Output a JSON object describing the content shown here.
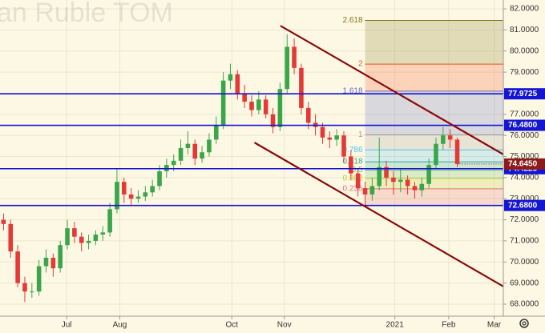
{
  "chart_data": {
    "type": "candlestick",
    "title": "an Ruble TOM",
    "categories": [
      null,
      null,
      null,
      null,
      null,
      null,
      null,
      null,
      null,
      null,
      null,
      null,
      null,
      null,
      null,
      null,
      null,
      null,
      null,
      null,
      null,
      null,
      null,
      null,
      null,
      null,
      null,
      null,
      null,
      null,
      null,
      null,
      null,
      null,
      null,
      null,
      null,
      null,
      null,
      null,
      null,
      null,
      null,
      null,
      null,
      null,
      null,
      null,
      null,
      null,
      null,
      null,
      null,
      null,
      null,
      null,
      null,
      null,
      null,
      null,
      null,
      null,
      null,
      null,
      null
    ],
    "open": [
      72.0,
      71.8,
      70.5,
      69.0,
      68.6,
      68.6,
      69.8,
      70.2,
      69.7,
      70.8,
      71.6,
      71.2,
      70.9,
      71.0,
      71.3,
      71.4,
      72.5,
      73.8,
      73.2,
      73.0,
      73.1,
      73.3,
      73.6,
      74.3,
      74.6,
      74.8,
      75.4,
      75.6,
      74.9,
      75.2,
      75.8,
      76.5,
      78.6,
      78.9,
      78.0,
      77.6,
      77.2,
      77.7,
      77.0,
      76.4,
      78.2,
      80.2,
      79.2,
      77.3,
      76.6,
      76.4,
      75.9,
      75.8,
      76.0,
      75.0,
      74.2,
      73.5,
      73.2,
      73.6,
      74.5,
      74.0,
      73.8,
      73.9,
      73.6,
      73.4,
      73.7,
      74.6,
      75.6,
      76.0,
      75.8
    ],
    "high": [
      72.3,
      72.0,
      70.8,
      69.3,
      69.0,
      70.1,
      70.6,
      70.4,
      71.0,
      72.0,
      71.9,
      71.4,
      71.3,
      71.5,
      71.7,
      72.8,
      74.4,
      74.0,
      73.5,
      73.4,
      73.6,
      73.9,
      74.6,
      74.9,
      75.1,
      75.8,
      76.2,
      75.8,
      75.5,
      76.1,
      76.9,
      79.0,
      79.4,
      79.1,
      78.4,
      77.9,
      78.1,
      77.9,
      77.3,
      78.5,
      80.8,
      80.6,
      79.4,
      77.6,
      77.0,
      76.6,
      76.2,
      76.3,
      76.2,
      75.3,
      74.4,
      73.8,
      74.0,
      75.9,
      74.8,
      74.3,
      74.4,
      74.1,
      73.8,
      74.0,
      74.9,
      75.9,
      76.4,
      76.3,
      75.9
    ],
    "low": [
      71.5,
      70.2,
      68.8,
      68.1,
      68.3,
      68.4,
      69.5,
      69.3,
      69.5,
      70.6,
      70.9,
      70.5,
      70.6,
      70.8,
      71.0,
      71.2,
      72.3,
      72.8,
      72.7,
      72.8,
      72.9,
      73.1,
      73.4,
      74.0,
      74.3,
      74.6,
      75.1,
      74.6,
      74.7,
      75.0,
      75.6,
      76.3,
      78.2,
      77.7,
      77.3,
      76.9,
      77.0,
      76.8,
      76.1,
      76.2,
      78.0,
      78.9,
      77.0,
      76.3,
      76.0,
      75.6,
      75.4,
      75.5,
      74.7,
      73.9,
      73.1,
      72.7,
      72.9,
      73.4,
      73.6,
      73.2,
      73.3,
      73.2,
      73.0,
      73.1,
      73.5,
      74.4,
      75.3,
      75.4,
      74.5
    ],
    "close": [
      71.8,
      70.5,
      69.0,
      68.6,
      68.6,
      69.8,
      70.2,
      69.7,
      70.8,
      71.6,
      71.2,
      70.9,
      71.0,
      71.3,
      71.4,
      72.5,
      73.8,
      73.2,
      73.0,
      73.1,
      73.3,
      73.6,
      74.3,
      74.6,
      74.8,
      75.4,
      75.6,
      74.9,
      75.2,
      75.8,
      76.5,
      78.6,
      78.9,
      78.0,
      77.6,
      77.2,
      77.7,
      77.0,
      76.4,
      78.2,
      80.2,
      79.2,
      77.3,
      76.6,
      76.4,
      75.9,
      75.8,
      76.0,
      75.0,
      74.2,
      73.5,
      73.2,
      73.6,
      74.5,
      74.0,
      73.8,
      73.9,
      73.6,
      73.4,
      73.7,
      74.6,
      75.6,
      76.0,
      75.8,
      74.645
    ],
    "up_color": "#3aa64a",
    "down_color": "#e53935",
    "last_label": "74.6450",
    "last_color": "#8e1b1b",
    "xlim": [
      -0.5,
      70.5
    ],
    "xticks": [
      {
        "value": 8.9,
        "label": "Jul"
      },
      {
        "value": 16.4,
        "label": "Aug"
      },
      {
        "value": 32.2,
        "label": "Oct"
      },
      {
        "value": 39.6,
        "label": "Nov"
      },
      {
        "value": 55.2,
        "label": "2021"
      },
      {
        "value": 62.8,
        "label": "Feb"
      },
      {
        "value": 69.2,
        "label": "Mar"
      }
    ],
    "ylim": [
      67.43,
      82.42
    ],
    "yticks": [
      {
        "value": 68,
        "label": "68.0000"
      },
      {
        "value": 69,
        "label": "69.0000"
      },
      {
        "value": 70,
        "label": "70.0000"
      },
      {
        "value": 71,
        "label": "71.0000"
      },
      {
        "value": 72,
        "label": "72.0000"
      },
      {
        "value": 73,
        "label": "73.0000"
      },
      {
        "value": 74,
        "label": "74.0000"
      },
      {
        "value": 75,
        "label": "75.0000"
      },
      {
        "value": 76,
        "label": "76.0000"
      },
      {
        "value": 77,
        "label": "77.0000"
      },
      {
        "value": 78,
        "label": "78.0000"
      },
      {
        "value": 79,
        "label": "79.0000"
      },
      {
        "value": 80,
        "label": "80.0000"
      },
      {
        "value": 81,
        "label": "81.0000"
      },
      {
        "value": 82,
        "label": "82.0000"
      }
    ],
    "grid": true,
    "levels": [
      77.9725,
      {
        "value": 76.48,
        "label": "76.4800"
      },
      74.4225,
      {
        "value": 72.68,
        "label": "72.6800"
      }
    ],
    "level_color": "#1515d4",
    "fib": {
      "start_x": 51,
      "base": 72.68,
      "top": 76.03,
      "levels": [
        0.236,
        0.382,
        0.5,
        0.618,
        0.786,
        1,
        1.618,
        2,
        2.618
      ],
      "colors": [
        "#e57373",
        "#c0ca33",
        "#66bb6a",
        "#26a69a",
        "#4fc3f7",
        "#9e9e9e",
        "#5c6bc0",
        "#f4511e",
        "#827717"
      ]
    },
    "channels": [
      {
        "x": [
          39.05,
          70.5
        ],
        "y": [
          81.2,
          75.1
        ]
      },
      {
        "x": [
          35.4,
          70.5
        ],
        "y": [
          75.66,
          68.84
        ]
      }
    ],
    "channel_color": "#8b0a0a"
  }
}
